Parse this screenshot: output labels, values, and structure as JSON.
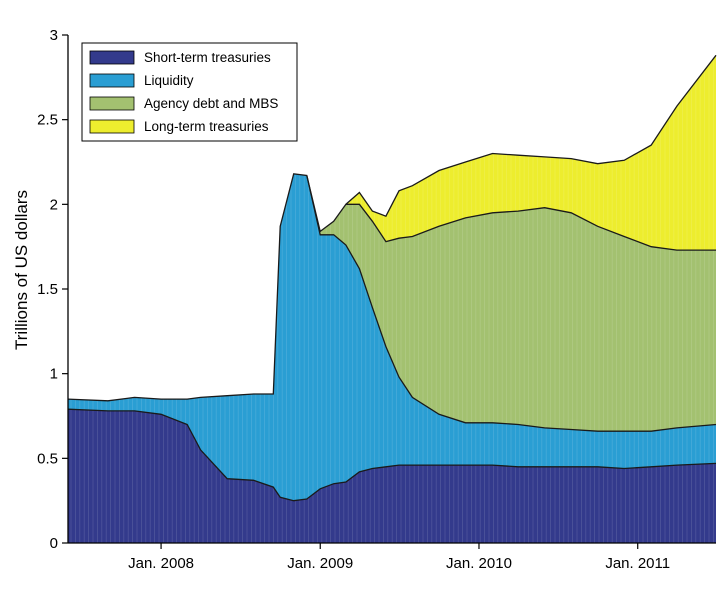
{
  "chart_data": {
    "type": "area",
    "stacked": true,
    "title": "",
    "xlabel": "",
    "ylabel": "Trillions of US dollars",
    "ylim": [
      0,
      3
    ],
    "yticks": [
      0,
      0.5,
      1,
      1.5,
      2,
      2.5,
      3
    ],
    "ytick_labels": [
      "0",
      "0.5",
      "1",
      "1.5",
      "2",
      "2.5",
      "3"
    ],
    "xlim": [
      "2007-06-01",
      "2011-06-30"
    ],
    "xticks": [
      "2008-01-01",
      "2009-01-01",
      "2010-01-01",
      "2011-01-01"
    ],
    "xtick_labels": [
      "Jan. 2008",
      "Jan. 2009",
      "Jan. 2010",
      "Jan. 2011"
    ],
    "grid": false,
    "legend_position": "top-left",
    "x": [
      "2007-06-01",
      "2007-09-01",
      "2007-11-01",
      "2008-01-01",
      "2008-03-01",
      "2008-04-01",
      "2008-06-01",
      "2008-08-01",
      "2008-09-15",
      "2008-10-01",
      "2008-11-01",
      "2008-12-01",
      "2009-01-01",
      "2009-02-01",
      "2009-03-01",
      "2009-04-01",
      "2009-05-01",
      "2009-06-01",
      "2009-07-01",
      "2009-08-01",
      "2009-10-01",
      "2009-12-01",
      "2010-02-01",
      "2010-04-01",
      "2010-06-01",
      "2010-08-01",
      "2010-10-01",
      "2010-12-01",
      "2011-02-01",
      "2011-04-01",
      "2011-06-30"
    ],
    "series": [
      {
        "name": "Short-term treasuries",
        "color": "#333a8c",
        "values": [
          0.79,
          0.78,
          0.78,
          0.76,
          0.7,
          0.55,
          0.38,
          0.37,
          0.33,
          0.27,
          0.25,
          0.26,
          0.32,
          0.35,
          0.36,
          0.42,
          0.44,
          0.45,
          0.46,
          0.46,
          0.46,
          0.46,
          0.46,
          0.45,
          0.45,
          0.45,
          0.45,
          0.44,
          0.45,
          0.46,
          0.47
        ]
      },
      {
        "name": "Liquidity",
        "color": "#2a9ed3",
        "values": [
          0.06,
          0.06,
          0.08,
          0.09,
          0.15,
          0.31,
          0.49,
          0.51,
          0.55,
          1.6,
          1.93,
          1.91,
          1.5,
          1.47,
          1.4,
          1.2,
          0.95,
          0.71,
          0.52,
          0.4,
          0.3,
          0.25,
          0.25,
          0.25,
          0.23,
          0.22,
          0.21,
          0.22,
          0.21,
          0.22,
          0.23
        ]
      },
      {
        "name": "Agency debt and MBS",
        "color": "#a3c170",
        "values": [
          0,
          0,
          0,
          0,
          0,
          0,
          0,
          0,
          0,
          0,
          0,
          0,
          0.02,
          0.08,
          0.24,
          0.38,
          0.51,
          0.62,
          0.82,
          0.95,
          1.11,
          1.21,
          1.24,
          1.26,
          1.3,
          1.28,
          1.21,
          1.15,
          1.09,
          1.05,
          1.03
        ]
      },
      {
        "name": "Long-term treasuries",
        "color": "#eded2e",
        "values": [
          0,
          0,
          0,
          0,
          0,
          0,
          0,
          0,
          0,
          0,
          0,
          0,
          0,
          0,
          0,
          0.07,
          0.06,
          0.15,
          0.28,
          0.3,
          0.33,
          0.33,
          0.35,
          0.33,
          0.3,
          0.32,
          0.37,
          0.45,
          0.6,
          0.85,
          1.15
        ]
      }
    ]
  }
}
